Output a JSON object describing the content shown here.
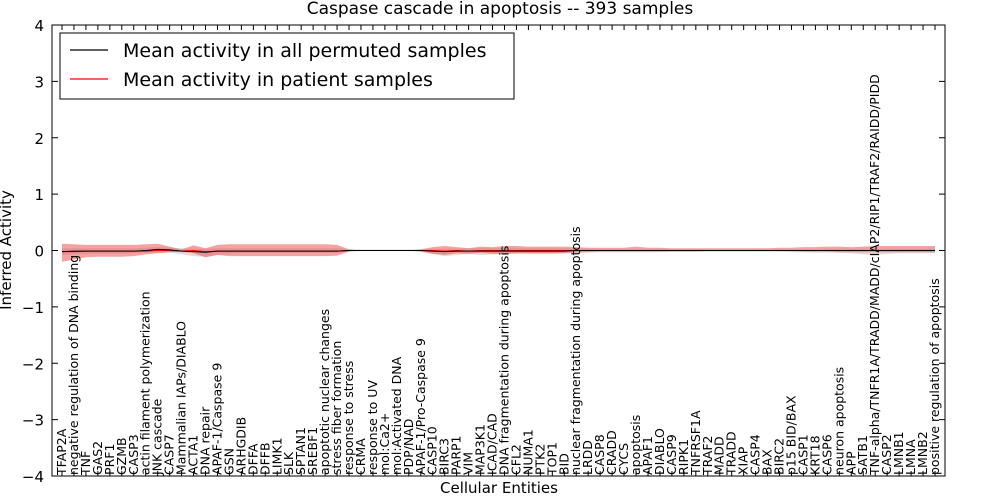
{
  "chart_data": {
    "type": "line",
    "title": "Caspase cascade in apoptosis -- 393 samples",
    "xlabel": "Cellular Entities",
    "ylabel": "Inferred Activity",
    "ylim": [
      -4,
      4
    ],
    "yticks": [
      -4,
      -3,
      -2,
      -1,
      0,
      1,
      2,
      3,
      4
    ],
    "ytick_labels": [
      "−4",
      "−3",
      "−2",
      "−1",
      "0",
      "1",
      "2",
      "3",
      "4"
    ],
    "legend_position": "top-left",
    "categories": [
      "TFAP2A",
      "negative regulation of DNA binding",
      "TNF",
      "GAS2",
      "PRF1",
      "GZMB",
      "CASP3",
      "actin filament polymerization",
      "JNK cascade",
      "CASP7",
      "Mammalian IAPs/DIABLO",
      "ACTA1",
      "DNA repair",
      "APAF-1/Caspase 9",
      "GSN",
      "ARHGDIB",
      "DFFA",
      "DFFB",
      "LIMK1",
      "SLK",
      "SPTAN1",
      "SREBF1",
      "apoptotic nuclear changes",
      "stress fiber formation",
      "response to stress",
      "CRMA",
      "response to UV",
      "mol:Ca2+",
      "mol:Activated DNA",
      "PDP/NAD",
      "APAF-1/Pro-Caspase 9",
      "CASP10",
      "BIRC3",
      "PARP1",
      "VIM",
      "MAP3K1",
      "ICAD/CAD",
      "DNA fragmentation during apoptosis",
      "CFL2",
      "NUMA1",
      "PTK2",
      "TOP1",
      "BID",
      "nuclear fragmentation during apoptosis",
      "LRDD",
      "CASP8",
      "CRADD",
      "CYCS",
      "apoptosis",
      "APAF1",
      "DIABLO",
      "CASP9",
      "RIPK1",
      "TNFRSF1A",
      "TRAF2",
      "MADD",
      "TRADD",
      "XIAP",
      "CASP4",
      "BAX",
      "BIRC2",
      "p15 BID/BAX",
      "CASP1",
      "KRT18",
      "CASP6",
      "neuron apoptosis",
      "APP",
      "SATB1",
      "TNF-alpha/TNFR1A/TRADD/MADD/cIAP2/RIP1/TRAF2/RAIDD/PIDD",
      "CASP2",
      "LMNB1",
      "LMNA",
      "LMNB2",
      "positive regulation of apoptosis"
    ],
    "series": [
      {
        "name": "Mean activity in all permuted samples",
        "color": "#000000",
        "values": [
          -0.02,
          -0.01,
          -0.01,
          -0.01,
          -0.01,
          -0.01,
          -0.01,
          0.0,
          0.02,
          0.01,
          -0.01,
          -0.02,
          -0.03,
          -0.01,
          -0.01,
          -0.01,
          -0.01,
          -0.01,
          -0.01,
          -0.01,
          -0.01,
          -0.01,
          -0.01,
          -0.01,
          0.0,
          0.0,
          0.0,
          0.0,
          0.0,
          0.0,
          0.0,
          -0.01,
          -0.02,
          -0.01,
          -0.01,
          -0.01,
          -0.01,
          -0.01,
          -0.01,
          -0.01,
          -0.01,
          -0.01,
          -0.01,
          0.0,
          0.0,
          0.0,
          0.0,
          0.0,
          0.0,
          0.0,
          0.0,
          0.0,
          0.0,
          0.0,
          0.0,
          0.0,
          0.0,
          0.0,
          0.0,
          0.0,
          0.0,
          0.0,
          0.0,
          0.0,
          0.0,
          0.0,
          0.0,
          0.0,
          0.0,
          0.0,
          0.0,
          0.0,
          0.0,
          0.0
        ],
        "band": {
          "color": "#aaaaaa",
          "lower": [
            -0.08,
            -0.07,
            -0.06,
            -0.06,
            -0.06,
            -0.06,
            -0.05,
            -0.04,
            -0.03,
            -0.04,
            -0.07,
            -0.1,
            -0.11,
            -0.08,
            -0.06,
            -0.05,
            -0.05,
            -0.05,
            -0.05,
            -0.05,
            -0.05,
            -0.05,
            -0.05,
            -0.04,
            -0.02,
            -0.01,
            -0.01,
            -0.01,
            -0.01,
            -0.01,
            -0.02,
            -0.06,
            -0.1,
            -0.08,
            -0.06,
            -0.08,
            -0.07,
            -0.06,
            -0.06,
            -0.06,
            -0.06,
            -0.06,
            -0.05,
            -0.04,
            -0.03,
            -0.03,
            -0.03,
            -0.03,
            -0.03,
            -0.03,
            -0.03,
            -0.02,
            -0.02,
            -0.02,
            -0.02,
            -0.02,
            -0.02,
            -0.02,
            -0.02,
            -0.02,
            -0.02,
            -0.03,
            -0.03,
            -0.04,
            -0.04,
            -0.04,
            -0.05,
            -0.07,
            -0.08,
            -0.06,
            -0.05,
            -0.05,
            -0.05,
            -0.05
          ],
          "upper": [
            0.04,
            0.04,
            0.04,
            0.04,
            0.04,
            0.04,
            0.04,
            0.05,
            0.06,
            0.05,
            0.04,
            0.03,
            0.03,
            0.04,
            0.04,
            0.04,
            0.04,
            0.04,
            0.04,
            0.04,
            0.04,
            0.04,
            0.04,
            0.04,
            0.03,
            0.02,
            0.02,
            0.02,
            0.02,
            0.02,
            0.02,
            0.03,
            0.03,
            0.03,
            0.04,
            0.04,
            0.04,
            0.04,
            0.04,
            0.04,
            0.04,
            0.04,
            0.04,
            0.03,
            0.03,
            0.03,
            0.03,
            0.03,
            0.03,
            0.03,
            0.03,
            0.02,
            0.02,
            0.02,
            0.02,
            0.02,
            0.02,
            0.02,
            0.02,
            0.02,
            0.02,
            0.02,
            0.02,
            0.02,
            0.03,
            0.03,
            0.03,
            0.03,
            0.03,
            0.03,
            0.03,
            0.03,
            0.03,
            0.03
          ]
        }
      },
      {
        "name": "Mean activity in patient samples",
        "color": "#ff0000",
        "values": [
          -0.02,
          -0.02,
          -0.01,
          -0.01,
          -0.01,
          -0.01,
          -0.01,
          -0.01,
          0.0,
          0.0,
          -0.01,
          0.0,
          -0.02,
          -0.01,
          -0.01,
          -0.01,
          -0.01,
          -0.01,
          -0.01,
          -0.01,
          -0.01,
          -0.01,
          -0.01,
          -0.01,
          0.0,
          0.0,
          0.0,
          0.0,
          0.0,
          0.0,
          0.0,
          0.0,
          -0.01,
          0.0,
          -0.01,
          0.0,
          0.0,
          0.0,
          0.0,
          0.0,
          0.0,
          0.0,
          0.0,
          0.0,
          0.0,
          0.0,
          0.0,
          0.0,
          0.0,
          0.0,
          0.0,
          0.0,
          0.0,
          0.0,
          0.0,
          0.0,
          0.0,
          0.0,
          0.0,
          0.0,
          0.0,
          0.0,
          0.0,
          0.0,
          0.0,
          0.0,
          0.0,
          0.0,
          0.0,
          0.0,
          0.0,
          0.0,
          0.0,
          0.0
        ],
        "band": {
          "color": "#ee5555",
          "lower": [
            -0.2,
            -0.16,
            -0.12,
            -0.11,
            -0.11,
            -0.11,
            -0.1,
            -0.07,
            -0.05,
            -0.03,
            -0.02,
            -0.05,
            -0.12,
            -0.08,
            -0.1,
            -0.1,
            -0.1,
            -0.1,
            -0.1,
            -0.1,
            -0.1,
            -0.1,
            -0.1,
            -0.09,
            -0.02,
            0.0,
            0.0,
            0.0,
            0.0,
            0.0,
            -0.02,
            -0.06,
            -0.08,
            -0.05,
            -0.06,
            -0.04,
            -0.06,
            -0.06,
            -0.05,
            -0.05,
            -0.05,
            -0.05,
            -0.05,
            -0.04,
            -0.03,
            -0.02,
            -0.02,
            -0.02,
            -0.02,
            -0.02,
            -0.02,
            -0.02,
            -0.02,
            -0.02,
            -0.01,
            -0.01,
            -0.01,
            -0.01,
            -0.01,
            -0.01,
            -0.01,
            -0.01,
            -0.02,
            -0.02,
            -0.02,
            -0.03,
            -0.03,
            -0.03,
            -0.03,
            -0.03,
            -0.03,
            -0.03,
            -0.03,
            -0.03
          ],
          "upper": [
            0.12,
            0.11,
            0.1,
            0.1,
            0.1,
            0.1,
            0.1,
            0.11,
            0.12,
            0.07,
            0.02,
            0.09,
            0.04,
            0.1,
            0.11,
            0.11,
            0.11,
            0.11,
            0.11,
            0.11,
            0.11,
            0.11,
            0.11,
            0.1,
            0.02,
            0.0,
            0.0,
            0.0,
            0.0,
            0.0,
            0.02,
            0.06,
            0.08,
            0.06,
            0.04,
            0.07,
            0.06,
            0.08,
            0.08,
            0.07,
            0.07,
            0.07,
            0.07,
            0.06,
            0.05,
            0.05,
            0.05,
            0.05,
            0.07,
            0.05,
            0.05,
            0.04,
            0.04,
            0.04,
            0.04,
            0.04,
            0.04,
            0.04,
            0.04,
            0.04,
            0.05,
            0.05,
            0.06,
            0.06,
            0.07,
            0.07,
            0.06,
            0.07,
            0.08,
            0.08,
            0.08,
            0.08,
            0.08,
            0.08
          ]
        }
      }
    ]
  }
}
